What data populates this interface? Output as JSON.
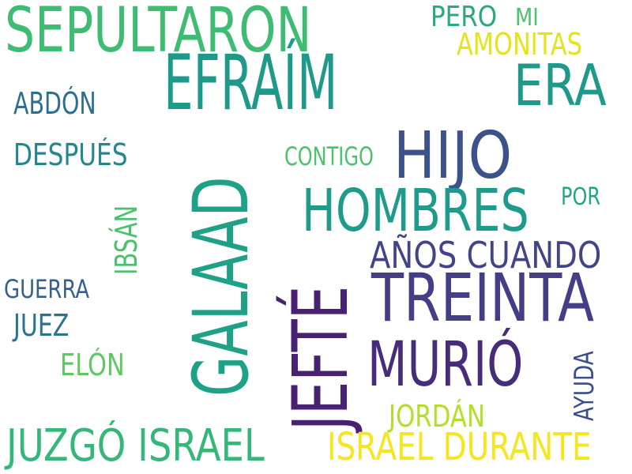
{
  "words": {
    "sepultaron": {
      "text": "SEPULTARON",
      "color": "#3fbc73"
    },
    "efraim": {
      "text": "EFRAÍM",
      "color": "#1f9a8a"
    },
    "era": {
      "text": "ERA",
      "color": "#1f9a8a"
    },
    "pero": {
      "text": "PERO",
      "color": "#2aa97f"
    },
    "mi": {
      "text": "MI",
      "color": "#4cc26c"
    },
    "amonitas": {
      "text": "AMONITAS",
      "color": "#e5e419"
    },
    "abdon": {
      "text": "ABDÓN",
      "color": "#2d6f8e"
    },
    "despues": {
      "text": "DESPUÉS",
      "color": "#24878e"
    },
    "contigo": {
      "text": "CONTIGO",
      "color": "#4cc26c"
    },
    "hijo": {
      "text": "HIJO",
      "color": "#3b528b"
    },
    "galaad": {
      "text": "GALAAD",
      "color": "#1fa187"
    },
    "hombres": {
      "text": "HOMBRES",
      "color": "#1e9b8a"
    },
    "por": {
      "text": "POR",
      "color": "#21a685"
    },
    "ibsan": {
      "text": "IBSÁN",
      "color": "#4ac16d"
    },
    "anos_cuando": {
      "text": "AÑOS CUANDO",
      "color": "#414487"
    },
    "jefte": {
      "text": "JEFTÉ",
      "color": "#482173"
    },
    "treinta": {
      "text": "TREINTA",
      "color": "#433e85"
    },
    "guerra": {
      "text": "GUERRA",
      "color": "#355f8d"
    },
    "juez": {
      "text": "JUEZ",
      "color": "#2b748e"
    },
    "murio": {
      "text": "MURIÓ",
      "color": "#472c7a"
    },
    "elon": {
      "text": "ELÓN",
      "color": "#5ec962"
    },
    "ayuda": {
      "text": "AYUDA",
      "color": "#3d4d8a"
    },
    "jordan": {
      "text": "JORDÁN",
      "color": "#b5de2b"
    },
    "juzgo_israel": {
      "text": "JUZGÓ ISRAEL",
      "color": "#35b779"
    },
    "israel_durante": {
      "text": "ISRAEL DURANTE",
      "color": "#f6e620"
    }
  }
}
